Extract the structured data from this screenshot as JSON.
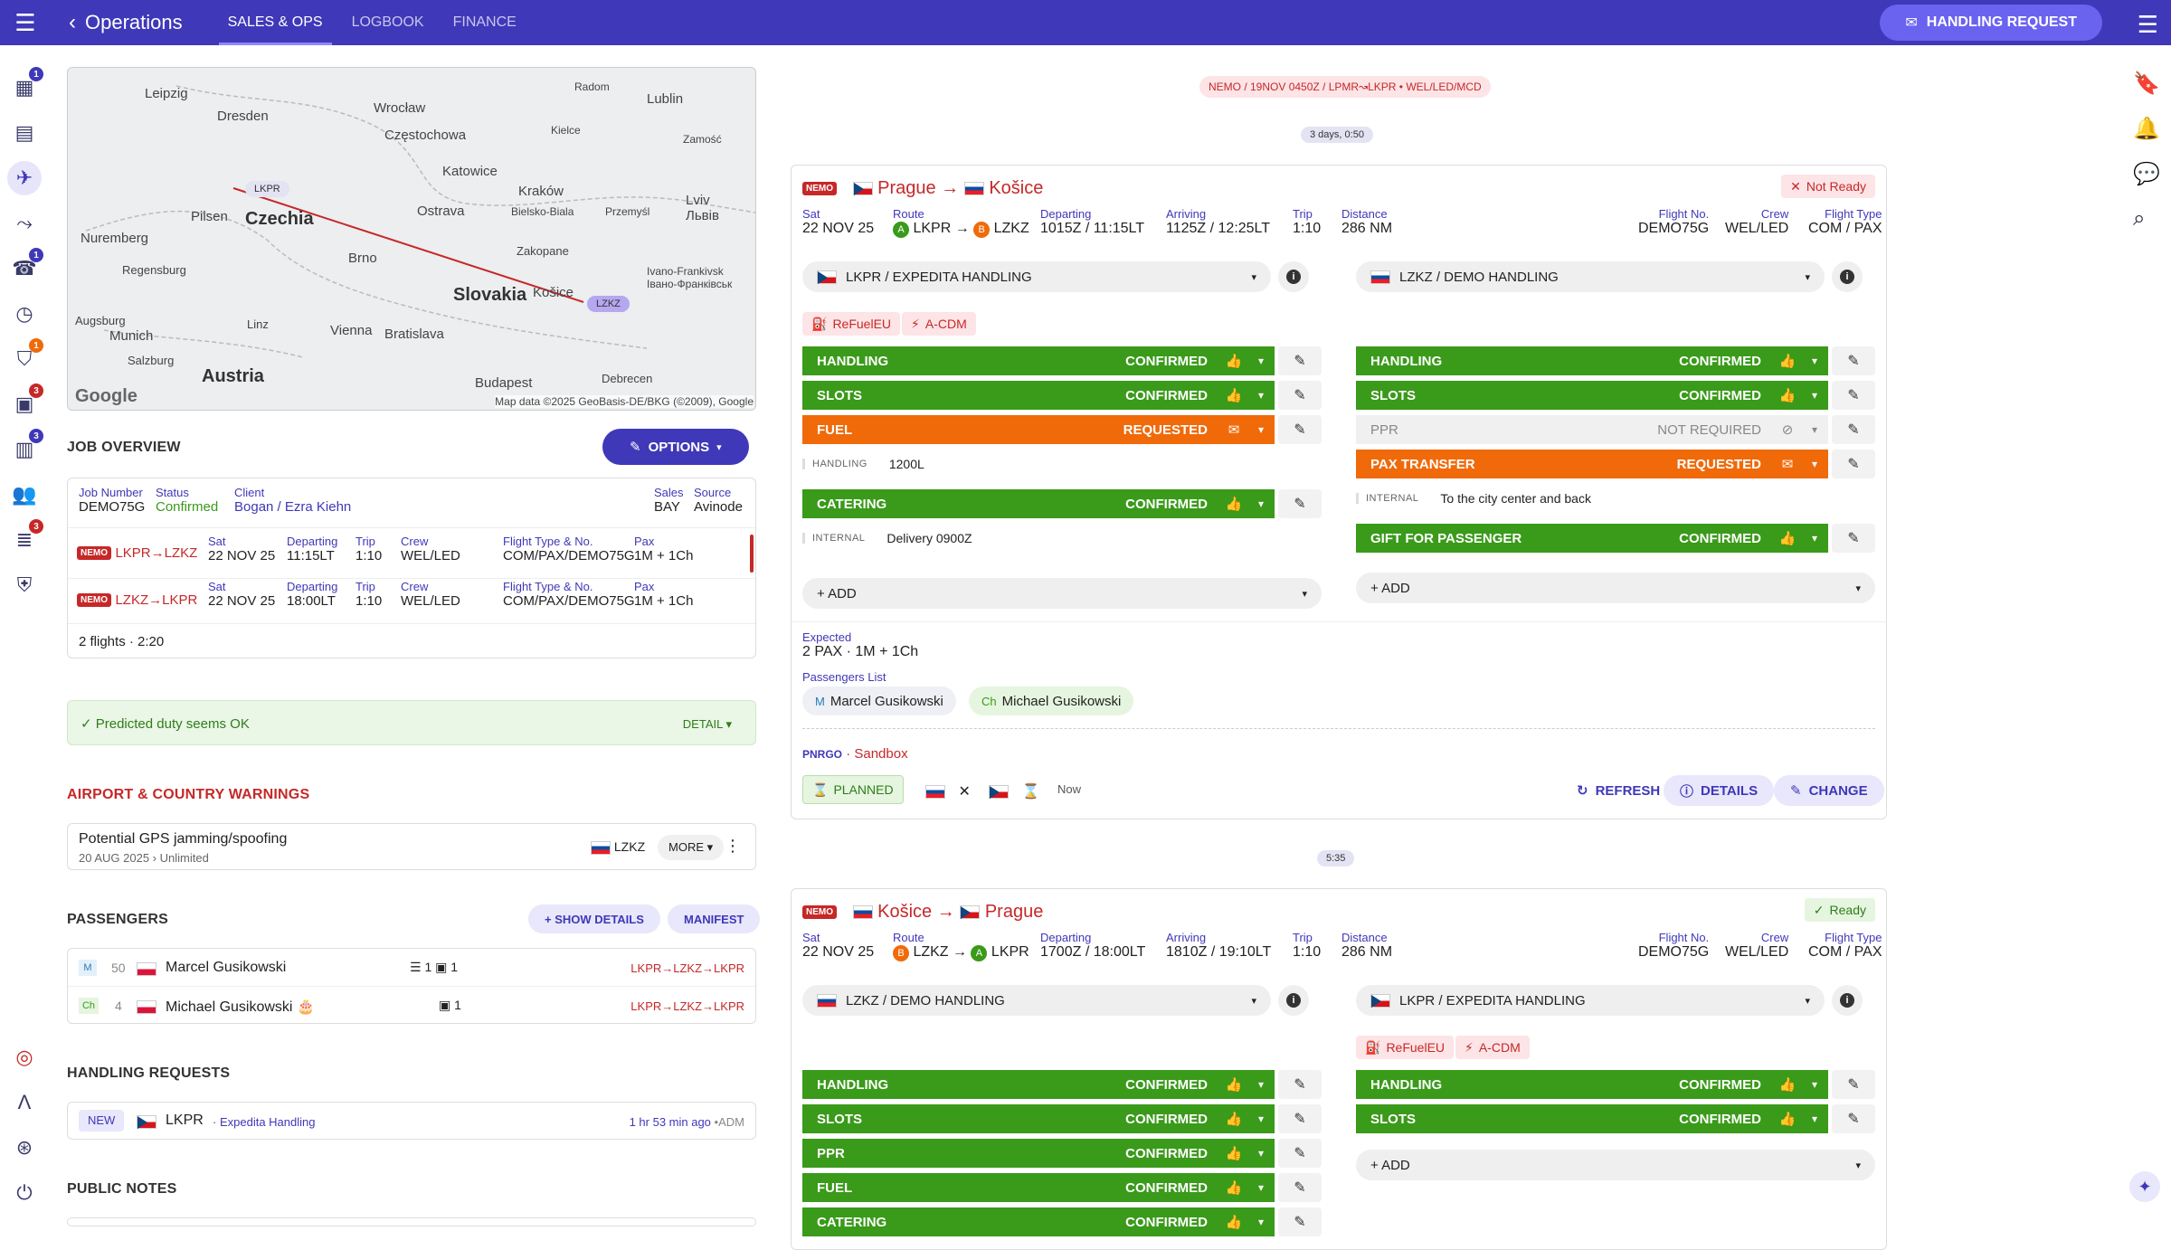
{
  "app": {
    "title": "Operations",
    "tabs": [
      "SALES & OPS",
      "LOGBOOK",
      "FINANCE"
    ],
    "handling_request_label": "HANDLING REQUEST"
  },
  "nav": {
    "badges": {
      "dashboard": "1",
      "requests": "1",
      "shield": "1",
      "docs": "3",
      "clipboard": "3",
      "list": "3"
    }
  },
  "map": {
    "labels": [
      "Leipzig",
      "Dresden",
      "Wrocław",
      "Częstochowa",
      "Radom",
      "Lublin",
      "Kielce",
      "Zamość",
      "Katowice",
      "Kraków",
      "Lviv Львів",
      "Ostrava",
      "Bielsko-Biala",
      "Przemyśl",
      "Czechia",
      "Pilsen",
      "Nuremberg",
      "Regensburg",
      "Brno",
      "Zakopane",
      "Slovakia",
      "Košice",
      "Ivano-Frankivsk Івано-Франківськ",
      "Augsburg",
      "Munich",
      "Linz",
      "Vienna",
      "Bratislava",
      "Salzburg",
      "Austria",
      "Budapest",
      "Debrecen",
      "Google",
      "Map data ©2025 GeoBasis-DE/BKG (©2009), Google"
    ],
    "lkpr": "LKPR",
    "lzkz": "LZKZ"
  },
  "job": {
    "title": "JOB OVERVIEW",
    "options_label": "OPTIONS",
    "job_number_label": "Job Number",
    "job_number": "DEMO75G",
    "status_label": "Status",
    "status": "Confirmed",
    "client_label": "Client",
    "client": "Bogan / Ezra Kiehn",
    "sales_label": "Sales",
    "sales": "BAY",
    "source_label": "Source",
    "source": "Avinode",
    "legs": [
      {
        "tag": "NEMO",
        "route": "LKPR→LZKZ",
        "day": "Sat",
        "date": "22 NOV 25",
        "dep_label": "Departing",
        "dep": "11:15LT",
        "trip_label": "Trip",
        "trip": "1:10",
        "crew_label": "Crew",
        "crew": "WEL/LED",
        "type_label": "Flight Type & No.",
        "type": "COM/PAX/DEMO75G",
        "pax_label": "Pax",
        "pax": "1M + 1Ch"
      },
      {
        "tag": "NEMO",
        "route": "LZKZ→LKPR",
        "day": "Sat",
        "date": "22 NOV 25",
        "dep_label": "Departing",
        "dep": "18:00LT",
        "trip_label": "Trip",
        "trip": "1:10",
        "crew_label": "Crew",
        "crew": "WEL/LED",
        "type_label": "Flight Type & No.",
        "type": "COM/PAX/DEMO75G",
        "pax_label": "Pax",
        "pax": "1M + 1Ch"
      }
    ],
    "summary": "2 flights · 2:20"
  },
  "duty": {
    "text": "Predicted duty seems OK",
    "detail": "DETAIL ▾"
  },
  "warnings": {
    "title": "AIRPORT & COUNTRY WARNINGS",
    "item": "Potential GPS jamming/spoofing",
    "sub": "20 AUG 2025 › Unlimited",
    "airport": "LZKZ",
    "more": "MORE ▾"
  },
  "passengers": {
    "title": "PASSENGERS",
    "show_details": "+ SHOW DETAILS",
    "manifest": "MANIFEST",
    "list": [
      {
        "type": "M",
        "age": "50",
        "name": "Marcel Gusikowski",
        "c1": "1",
        "c2": "1",
        "route": "LKPR→LZKZ→LKPR"
      },
      {
        "type": "Ch",
        "age": "4",
        "name": "Michael Gusikowski",
        "c1": "",
        "c2": "1",
        "route": "LKPR→LZKZ→LKPR"
      }
    ]
  },
  "handling": {
    "title": "HANDLING REQUESTS",
    "status": "NEW",
    "airport": "LKPR",
    "handler": "Expedita Handling",
    "time": "1 hr 53 min ago",
    "by": "•ADM"
  },
  "notes": {
    "title": "PUBLIC NOTES"
  },
  "main": {
    "msg_chip": "NEMO / 19NOV 0450Z / LPMR↝LKPR • WEL/LED/MCD",
    "gap1": "3 days, 0:50",
    "gap2": "5:35"
  },
  "flights": [
    {
      "tag": "NEMO",
      "from": "Prague",
      "to": "Košice",
      "ready": "Not Ready",
      "day": "Sat",
      "date": "22 NOV 25",
      "route_label": "Route",
      "route_a": "LKPR",
      "route_b": "LZKZ",
      "dep_label": "Departing",
      "dep": "1015Z / 11:15LT",
      "arr_label": "Arriving",
      "arr": "1125Z / 12:25LT",
      "trip_label": "Trip",
      "trip": "1:10",
      "dist_label": "Distance",
      "dist": "286 NM",
      "fno_label": "Flight No.",
      "fno": "DEMO75G",
      "crew_label": "Crew",
      "crew": "WEL/LED",
      "ftype_label": "Flight Type",
      "ftype": "COM / PAX",
      "left_handler": "LKPR / EXPEDITA HANDLING",
      "right_handler": "LZKZ / DEMO HANDLING",
      "tags": [
        "ReFuelEU",
        "A-CDM"
      ],
      "left_services": [
        {
          "name": "HANDLING",
          "status": "CONFIRMED"
        },
        {
          "name": "SLOTS",
          "status": "CONFIRMED"
        },
        {
          "name": "FUEL",
          "status": "REQUESTED"
        },
        {
          "name": "CATERING",
          "status": "CONFIRMED"
        }
      ],
      "fuel_note_k": "HANDLING",
      "fuel_note": "1200L",
      "cat_note_k": "INTERNAL",
      "cat_note": "Delivery 0900Z",
      "right_services": [
        {
          "name": "HANDLING",
          "status": "CONFIRMED"
        },
        {
          "name": "SLOTS",
          "status": "CONFIRMED"
        },
        {
          "name": "PPR",
          "status": "NOT REQUIRED"
        },
        {
          "name": "PAX TRANSFER",
          "status": "REQUESTED"
        },
        {
          "name": "GIFT FOR PASSENGER",
          "status": "CONFIRMED"
        }
      ],
      "pax_note_k": "INTERNAL",
      "pax_note": "To the city center and back",
      "add": "+ ADD",
      "expected_label": "Expected",
      "expected": "2 PAX · 1M + 1Ch",
      "plist_label": "Passengers List",
      "p1_type": "M",
      "p1": "Marcel Gusikowski",
      "p2_type": "Ch",
      "p2": "Michael Gusikowski",
      "pnrgo": "PNRGO",
      "sandbox": "· Sandbox",
      "planned": "PLANNED",
      "now": "Now",
      "refresh": "REFRESH",
      "details": "DETAILS",
      "change": "CHANGE"
    },
    {
      "tag": "NEMO",
      "from": "Košice",
      "to": "Prague",
      "ready": "Ready",
      "day": "Sat",
      "date": "22 NOV 25",
      "route_label": "Route",
      "route_a": "LZKZ",
      "route_b": "LKPR",
      "dep_label": "Departing",
      "dep": "1700Z / 18:00LT",
      "arr_label": "Arriving",
      "arr": "1810Z / 19:10LT",
      "trip_label": "Trip",
      "trip": "1:10",
      "dist_label": "Distance",
      "dist": "286 NM",
      "fno_label": "Flight No.",
      "fno": "DEMO75G",
      "crew_label": "Crew",
      "crew": "WEL/LED",
      "ftype_label": "Flight Type",
      "ftype": "COM / PAX",
      "left_handler": "LZKZ / DEMO HANDLING",
      "right_handler": "LKPR / EXPEDITA HANDLING",
      "tags": [
        "ReFuelEU",
        "A-CDM"
      ],
      "left_services": [
        {
          "name": "HANDLING",
          "status": "CONFIRMED"
        },
        {
          "name": "SLOTS",
          "status": "CONFIRMED"
        },
        {
          "name": "PPR",
          "status": "CONFIRMED"
        },
        {
          "name": "FUEL",
          "status": "CONFIRMED"
        },
        {
          "name": "CATERING",
          "status": "CONFIRMED"
        }
      ],
      "right_services": [
        {
          "name": "HANDLING",
          "status": "CONFIRMED"
        },
        {
          "name": "SLOTS",
          "status": "CONFIRMED"
        }
      ],
      "add": "+ ADD"
    }
  ],
  "colors": {
    "brand": "#3f38b8",
    "confirmed": "#3a9a1a",
    "requested": "#f06a0a",
    "danger": "#c62828"
  }
}
